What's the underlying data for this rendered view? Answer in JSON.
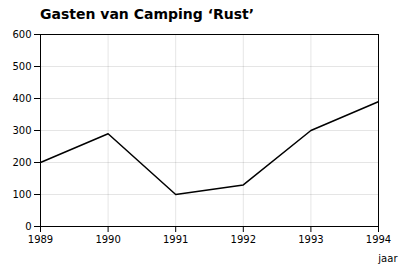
{
  "chart_data": {
    "type": "line",
    "title": "Gasten van Camping ‘Rust’",
    "x": [
      1989,
      1990,
      1991,
      1992,
      1993,
      1994
    ],
    "values": [
      200,
      290,
      100,
      130,
      300,
      390
    ],
    "xlabel": "jaar",
    "xlim": [
      1989,
      1994
    ],
    "ylim": [
      0,
      600
    ],
    "xticks": [
      1989,
      1990,
      1991,
      1992,
      1993,
      1994
    ],
    "yticks": [
      0,
      100,
      200,
      300,
      400,
      500,
      600
    ],
    "grid": true
  }
}
